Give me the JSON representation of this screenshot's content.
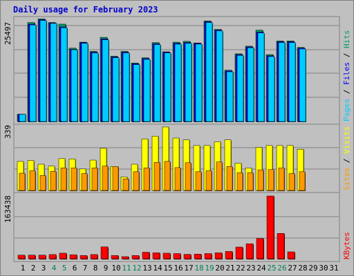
{
  "chart_data": [
    {
      "type": "bar",
      "title": "Daily usage for February 2023",
      "categories": [
        "1",
        "2",
        "3",
        "4",
        "5",
        "6",
        "7",
        "8",
        "9",
        "10",
        "11",
        "12",
        "13",
        "14",
        "15",
        "16",
        "17",
        "18",
        "19",
        "20",
        "21",
        "22",
        "23",
        "24",
        "25",
        "26",
        "27",
        "28",
        "29",
        "30",
        "31"
      ],
      "weekend_days": [
        "4",
        "5",
        "11",
        "12",
        "18",
        "19",
        "25",
        "26"
      ],
      "max_label": "25497",
      "ylim": [
        0,
        25497
      ],
      "series": [
        {
          "name": "Hits",
          "color": "#009966",
          "values": [
            1800,
            24700,
            25600,
            24700,
            24300,
            18300,
            19800,
            17500,
            21000,
            16300,
            17500,
            14600,
            15900,
            19700,
            17400,
            19800,
            20000,
            19600,
            25100,
            23000,
            12800,
            16900,
            18800,
            22800,
            16700,
            20100,
            20100,
            18500,
            null,
            null,
            null
          ]
        },
        {
          "name": "Files",
          "color": "#0000ff",
          "values": [
            1800,
            24300,
            25400,
            24600,
            23600,
            18000,
            19700,
            17300,
            20600,
            16100,
            17300,
            14400,
            15700,
            19400,
            17300,
            19500,
            19700,
            19500,
            24900,
            22800,
            12600,
            16700,
            18600,
            22300,
            16400,
            19900,
            19900,
            18300,
            null,
            null,
            null
          ]
        },
        {
          "name": "Pages",
          "color": "#00ccff",
          "values": [
            1800,
            24100,
            25200,
            24500,
            23400,
            17900,
            19500,
            17100,
            20400,
            15900,
            17100,
            14200,
            15500,
            19200,
            17100,
            19300,
            19500,
            19300,
            24700,
            22600,
            12400,
            16500,
            18400,
            22100,
            16200,
            19700,
            19700,
            18100,
            null,
            null,
            null
          ]
        }
      ]
    },
    {
      "type": "bar",
      "max_label": "339",
      "ylim": [
        0,
        339
      ],
      "series": [
        {
          "name": "Visits",
          "color": "#ffff00",
          "values": [
            155,
            160,
            140,
            130,
            170,
            168,
            115,
            162,
            225,
            128,
            72,
            140,
            275,
            290,
            339,
            280,
            270,
            240,
            240,
            260,
            270,
            145,
            120,
            230,
            240,
            240,
            240,
            220,
            null,
            null,
            null
          ]
        },
        {
          "name": "Sites",
          "color": "#ff9900",
          "values": [
            92,
            105,
            80,
            102,
            120,
            120,
            90,
            120,
            130,
            128,
            62,
            100,
            120,
            150,
            155,
            122,
            148,
            100,
            105,
            152,
            128,
            95,
            95,
            110,
            112,
            120,
            90,
            100,
            null,
            null,
            null
          ]
        }
      ]
    },
    {
      "type": "bar",
      "max_label": "163438",
      "ylim": [
        0,
        163438
      ],
      "series": [
        {
          "name": "KBytes",
          "color": "#ff0000",
          "values": [
            9500,
            9500,
            9500,
            11000,
            14500,
            10500,
            8500,
            11000,
            31000,
            8500,
            5500,
            8500,
            17000,
            15500,
            14500,
            13500,
            11500,
            12000,
            13500,
            15500,
            19000,
            30500,
            39000,
            53000,
            163438,
            66000,
            18000,
            null,
            null,
            null,
            null
          ]
        }
      ]
    }
  ]
}
